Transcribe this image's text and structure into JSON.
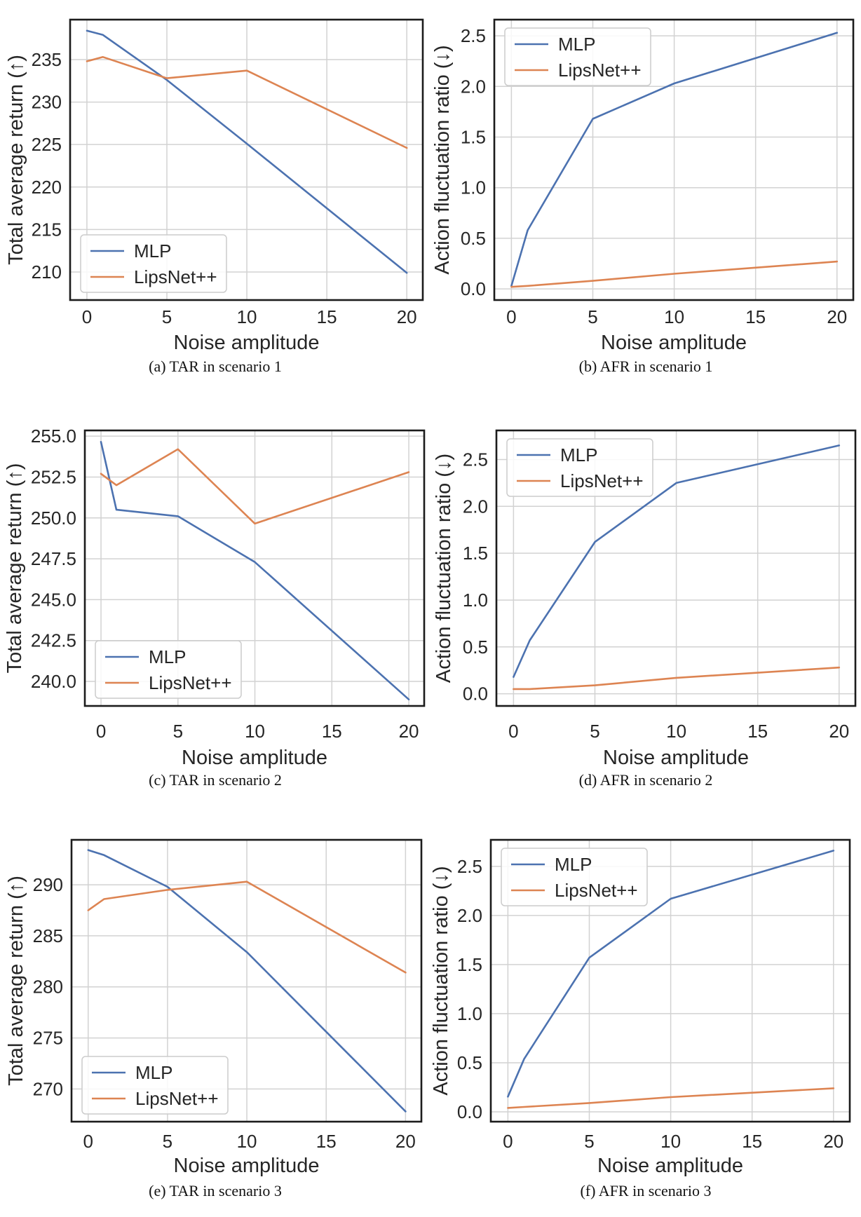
{
  "figure": {
    "series_names": [
      "MLP",
      "LipsNet++"
    ],
    "x_axis_label": "Noise amplitude",
    "tar_axis_label": "Total average return (↑)",
    "afr_axis_label": "Action fluctuation ratio (↓)"
  },
  "colors": {
    "mlp": "#4c72b0",
    "lipsnet": "#dd8452",
    "grid": "#d2d2d2",
    "frame": "#1c1c1c",
    "text": "#262626",
    "legend_border": "#cccccc",
    "background": "#ffffff"
  },
  "chart_data": [
    {
      "id": "a",
      "type": "line",
      "caption": "(a) TAR in scenario 1",
      "xlabel": "Noise amplitude",
      "ylabel": "Total average return (↑)",
      "x": [
        0,
        1,
        5,
        10,
        20
      ],
      "series": [
        {
          "name": "MLP",
          "color": "#4c72b0",
          "values": [
            238.4,
            237.9,
            232.6,
            225.1,
            209.9
          ]
        },
        {
          "name": "LipsNet++",
          "color": "#dd8452",
          "values": [
            234.8,
            235.3,
            232.8,
            233.7,
            224.6
          ]
        }
      ],
      "xticks": [
        0,
        5,
        10,
        15,
        20
      ],
      "xtick_labels": [
        "0",
        "5",
        "10",
        "15",
        "20"
      ],
      "yticks": [
        210,
        215,
        220,
        225,
        230,
        235
      ],
      "ytick_labels": [
        "210",
        "215",
        "220",
        "225",
        "230",
        "235"
      ],
      "xlim": [
        -1.05,
        21.0
      ],
      "ylim": [
        206.7,
        239.7
      ],
      "grid": true,
      "legend_position": "lower-left"
    },
    {
      "id": "b",
      "type": "line",
      "caption": "(b) AFR in scenario 1",
      "xlabel": "Noise amplitude",
      "ylabel": "Action fluctuation ratio (↓)",
      "x": [
        0,
        1,
        5,
        10,
        20
      ],
      "series": [
        {
          "name": "MLP",
          "color": "#4c72b0",
          "values": [
            0.03,
            0.58,
            1.68,
            2.03,
            2.53
          ]
        },
        {
          "name": "LipsNet++",
          "color": "#dd8452",
          "values": [
            0.02,
            0.03,
            0.08,
            0.15,
            0.27
          ]
        }
      ],
      "xticks": [
        0,
        5,
        10,
        15,
        20
      ],
      "xtick_labels": [
        "0",
        "5",
        "10",
        "15",
        "20"
      ],
      "yticks": [
        0.0,
        0.5,
        1.0,
        1.5,
        2.0,
        2.5
      ],
      "ytick_labels": [
        "0.0",
        "0.5",
        "1.0",
        "1.5",
        "2.0",
        "2.5"
      ],
      "xlim": [
        -1.05,
        21.0
      ],
      "ylim": [
        -0.11,
        2.66
      ],
      "grid": true,
      "legend_position": "upper-left"
    },
    {
      "id": "c",
      "type": "line",
      "caption": "(c) TAR in scenario 2",
      "xlabel": "Noise amplitude",
      "ylabel": "Total average return (↑)",
      "x": [
        0,
        1,
        5,
        10,
        20
      ],
      "series": [
        {
          "name": "MLP",
          "color": "#4c72b0",
          "values": [
            254.65,
            250.5,
            250.1,
            247.3,
            238.9
          ]
        },
        {
          "name": "LipsNet++",
          "color": "#dd8452",
          "values": [
            252.7,
            252.0,
            254.2,
            249.65,
            252.8
          ]
        }
      ],
      "xticks": [
        0,
        5,
        10,
        15,
        20
      ],
      "xtick_labels": [
        "0",
        "5",
        "10",
        "15",
        "20"
      ],
      "yticks": [
        240.0,
        242.5,
        245.0,
        247.5,
        250.0,
        252.5,
        255.0
      ],
      "ytick_labels": [
        "240.0",
        "242.5",
        "245.0",
        "247.5",
        "250.0",
        "252.5",
        "255.0"
      ],
      "xlim": [
        -1.05,
        21.0
      ],
      "ylim": [
        238.5,
        255.35
      ],
      "grid": true,
      "legend_position": "lower-left"
    },
    {
      "id": "d",
      "type": "line",
      "caption": "(d) AFR in scenario 2",
      "xlabel": "Noise amplitude",
      "ylabel": "Action fluctuation ratio (↓)",
      "x": [
        0,
        1,
        5,
        10,
        20
      ],
      "series": [
        {
          "name": "MLP",
          "color": "#4c72b0",
          "values": [
            0.18,
            0.57,
            1.62,
            2.25,
            2.65
          ]
        },
        {
          "name": "LipsNet++",
          "color": "#dd8452",
          "values": [
            0.05,
            0.05,
            0.09,
            0.17,
            0.28
          ]
        }
      ],
      "xticks": [
        0,
        5,
        10,
        15,
        20
      ],
      "xtick_labels": [
        "0",
        "5",
        "10",
        "15",
        "20"
      ],
      "yticks": [
        0.0,
        0.5,
        1.0,
        1.5,
        2.0,
        2.5
      ],
      "ytick_labels": [
        "0.0",
        "0.5",
        "1.0",
        "1.5",
        "2.0",
        "2.5"
      ],
      "xlim": [
        -1.05,
        21.0
      ],
      "ylim": [
        -0.13,
        2.81
      ],
      "grid": true,
      "legend_position": "upper-left"
    },
    {
      "id": "e",
      "type": "line",
      "caption": "(e) TAR in scenario 3",
      "xlabel": "Noise amplitude",
      "ylabel": "Total average return (↑)",
      "x": [
        0,
        1,
        5,
        10,
        20
      ],
      "series": [
        {
          "name": "MLP",
          "color": "#4c72b0",
          "values": [
            293.4,
            292.9,
            289.8,
            283.4,
            267.8
          ]
        },
        {
          "name": "LipsNet++",
          "color": "#dd8452",
          "values": [
            287.5,
            288.6,
            289.5,
            290.3,
            281.4
          ]
        }
      ],
      "xticks": [
        0,
        5,
        10,
        15,
        20
      ],
      "xtick_labels": [
        "0",
        "5",
        "10",
        "15",
        "20"
      ],
      "yticks": [
        270,
        275,
        280,
        285,
        290
      ],
      "ytick_labels": [
        "270",
        "275",
        "280",
        "285",
        "290"
      ],
      "xlim": [
        -1.05,
        21.0
      ],
      "ylim": [
        266.8,
        294.4
      ],
      "grid": true,
      "legend_position": "lower-left"
    },
    {
      "id": "f",
      "type": "line",
      "caption": "(f) AFR in scenario 3",
      "xlabel": "Noise amplitude",
      "ylabel": "Action fluctuation ratio (↓)",
      "x": [
        0,
        1,
        5,
        10,
        20
      ],
      "series": [
        {
          "name": "MLP",
          "color": "#4c72b0",
          "values": [
            0.155,
            0.54,
            1.57,
            2.17,
            2.66
          ]
        },
        {
          "name": "LipsNet++",
          "color": "#dd8452",
          "values": [
            0.04,
            0.05,
            0.09,
            0.15,
            0.24
          ]
        }
      ],
      "xticks": [
        0,
        5,
        10,
        15,
        20
      ],
      "xtick_labels": [
        "0",
        "5",
        "10",
        "15",
        "20"
      ],
      "yticks": [
        0.0,
        0.5,
        1.0,
        1.5,
        2.0,
        2.5
      ],
      "ytick_labels": [
        "0.0",
        "0.5",
        "1.0",
        "1.5",
        "2.0",
        "2.5"
      ],
      "xlim": [
        -1.05,
        21.0
      ],
      "ylim": [
        -0.1,
        2.77
      ],
      "grid": true,
      "legend_position": "upper-left"
    }
  ]
}
